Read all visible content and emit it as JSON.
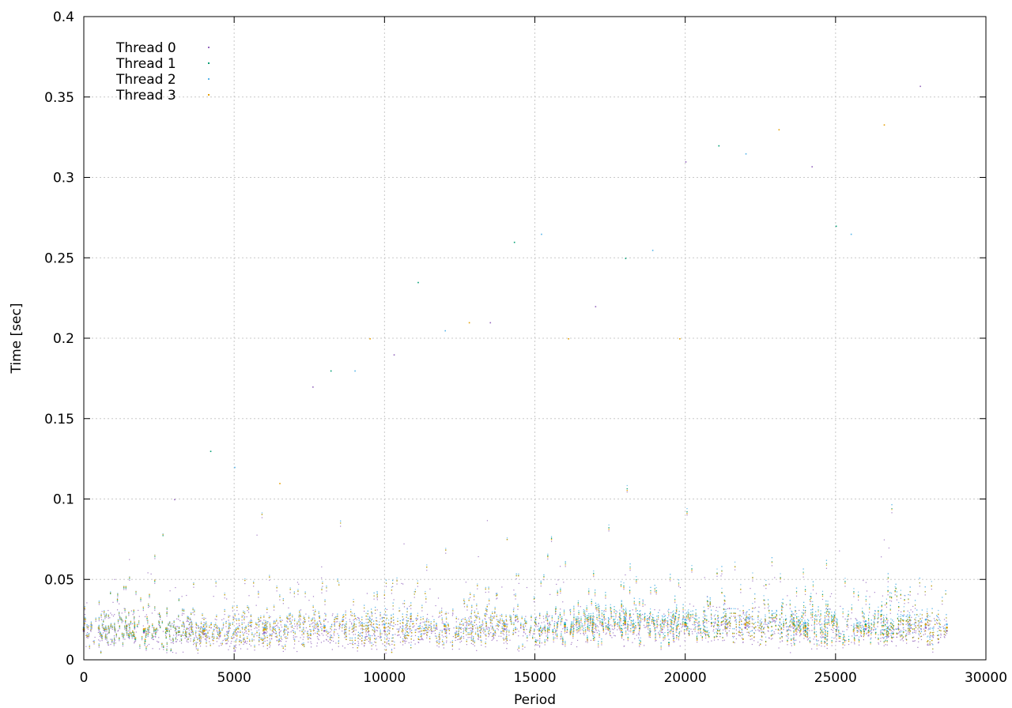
{
  "chart_data": {
    "type": "scatter",
    "xlabel": "Period",
    "ylabel": "Time [sec]",
    "xlim": [
      0,
      30000
    ],
    "ylim": [
      0,
      0.4
    ],
    "x_ticks": [
      0,
      5000,
      10000,
      15000,
      20000,
      25000,
      30000
    ],
    "y_ticks": [
      0,
      0.05,
      0.1,
      0.15,
      0.2,
      0.25,
      0.3,
      0.35,
      0.4
    ],
    "x_tick_labels": [
      "0",
      "5000",
      "10000",
      "15000",
      "20000",
      "25000",
      "30000"
    ],
    "y_tick_labels": [
      "0",
      "0.05",
      "0.1",
      "0.15",
      "0.2",
      "0.25",
      "0.3",
      "0.35",
      "0.4"
    ],
    "grid": true,
    "legend_position": "top-left",
    "series": [
      {
        "name": "Thread 0",
        "color": "#9467bd",
        "marker": "dot",
        "x": [
          0,
          2000,
          4000,
          6000,
          8000,
          10000,
          12000,
          14000,
          16000,
          18000,
          20000,
          22000,
          24000,
          26000,
          28000,
          28700
        ],
        "values": [
          0.018,
          0.017,
          0.016,
          0.017,
          0.018,
          0.018,
          0.019,
          0.019,
          0.02,
          0.022,
          0.021,
          0.02,
          0.018,
          0.019,
          0.02,
          0.018
        ]
      },
      {
        "name": "Thread 1",
        "color": "#009e73",
        "marker": "dot",
        "x": [
          0,
          2000,
          4000,
          6000,
          8000,
          10000,
          12000,
          14000,
          16000,
          18000,
          20000,
          22000,
          24000,
          26000,
          28000,
          28700
        ],
        "values": [
          0.019,
          0.018,
          0.018,
          0.019,
          0.02,
          0.02,
          0.021,
          0.021,
          0.022,
          0.024,
          0.023,
          0.022,
          0.021,
          0.022,
          0.022,
          0.02
        ]
      },
      {
        "name": "Thread 2",
        "color": "#56b4e9",
        "marker": "dot",
        "x": [
          0,
          2000,
          4000,
          6000,
          8000,
          10000,
          12000,
          14000,
          16000,
          18000,
          20000,
          22000,
          24000,
          26000,
          28000,
          28700
        ],
        "values": [
          0.02,
          0.019,
          0.019,
          0.02,
          0.021,
          0.022,
          0.022,
          0.022,
          0.023,
          0.026,
          0.025,
          0.025,
          0.023,
          0.024,
          0.025,
          0.022
        ]
      },
      {
        "name": "Thread 3",
        "color": "#e69f00",
        "marker": "dot",
        "x": [
          0,
          2000,
          4000,
          6000,
          8000,
          10000,
          12000,
          14000,
          16000,
          18000,
          20000,
          22000,
          24000,
          26000,
          28000,
          28700
        ],
        "values": [
          0.019,
          0.019,
          0.018,
          0.019,
          0.02,
          0.02,
          0.021,
          0.021,
          0.021,
          0.023,
          0.022,
          0.022,
          0.02,
          0.021,
          0.022,
          0.02
        ]
      }
    ],
    "outliers": {
      "x": [
        3000,
        4200,
        5000,
        6500,
        7600,
        8200,
        9000,
        9500,
        10300,
        11100,
        12000,
        12800,
        13500,
        14300,
        15200,
        16100,
        17000,
        18000,
        18900,
        19800,
        20000,
        21100,
        22000,
        23100,
        24200,
        25000,
        25500,
        26600,
        27800
      ],
      "values": [
        0.1,
        0.13,
        0.12,
        0.11,
        0.17,
        0.18,
        0.18,
        0.2,
        0.19,
        0.235,
        0.205,
        0.21,
        0.21,
        0.26,
        0.265,
        0.2,
        0.22,
        0.25,
        0.255,
        0.2,
        0.31,
        0.32,
        0.315,
        0.33,
        0.307,
        0.27,
        0.265,
        0.333,
        0.357
      ]
    }
  }
}
